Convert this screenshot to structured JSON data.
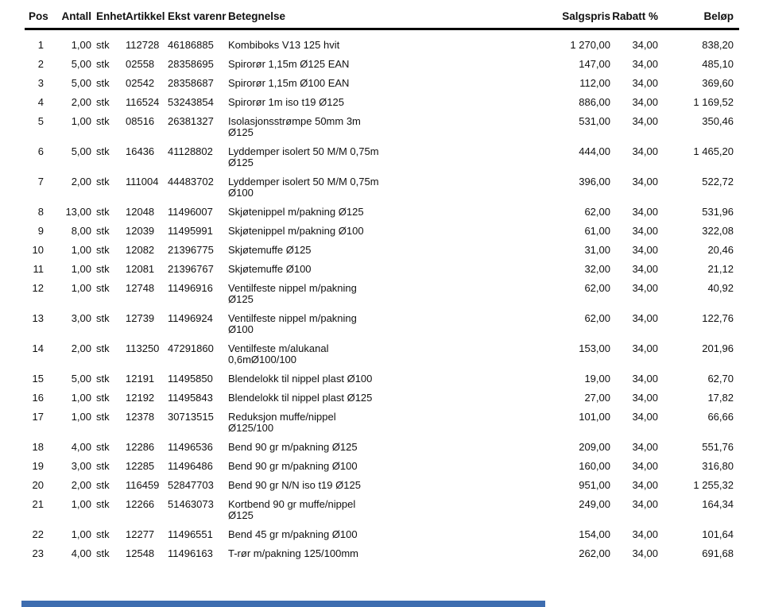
{
  "page": {
    "background": "#ffffff",
    "text_color": "#111111"
  },
  "table": {
    "headers": {
      "pos": "Pos",
      "antall": "Antall",
      "enhet": "Enhet",
      "artikkel": "Artikkel",
      "ekst_varenr": "Ekst varenr",
      "betegnelse": "Betegnelse",
      "salgspris": "Salgspris",
      "rabatt": "Rabatt %",
      "belop": "Beløp"
    },
    "rows": [
      {
        "pos": "1",
        "antall": "1,00",
        "enhet": "stk",
        "artikkel": "112728",
        "ekst_varenr": "46186885",
        "betegnelse": "Kombiboks V13 125 hvit",
        "salgspris": "1 270,00",
        "rabatt": "34,00",
        "belop": "838,20"
      },
      {
        "pos": "2",
        "antall": "5,00",
        "enhet": "stk",
        "artikkel": "02558",
        "ekst_varenr": "28358695",
        "betegnelse": "Spirorør 1,15m Ø125 EAN",
        "salgspris": "147,00",
        "rabatt": "34,00",
        "belop": "485,10"
      },
      {
        "pos": "3",
        "antall": "5,00",
        "enhet": "stk",
        "artikkel": "02542",
        "ekst_varenr": "28358687",
        "betegnelse": "Spirorør 1,15m Ø100 EAN",
        "salgspris": "112,00",
        "rabatt": "34,00",
        "belop": "369,60"
      },
      {
        "pos": "4",
        "antall": "2,00",
        "enhet": "stk",
        "artikkel": "116524",
        "ekst_varenr": "53243854",
        "betegnelse": "Spirorør 1m iso t19 Ø125",
        "salgspris": "886,00",
        "rabatt": "34,00",
        "belop": "1 169,52"
      },
      {
        "pos": "5",
        "antall": "1,00",
        "enhet": "stk",
        "artikkel": "08516",
        "ekst_varenr": "26381327",
        "betegnelse": "Isolasjonsstrømpe 50mm 3m\nØ125",
        "salgspris": "531,00",
        "rabatt": "34,00",
        "belop": "350,46"
      },
      {
        "pos": "6",
        "antall": "5,00",
        "enhet": "stk",
        "artikkel": "16436",
        "ekst_varenr": "41128802",
        "betegnelse": "Lyddemper isolert 50 M/M 0,75m\nØ125",
        "salgspris": "444,00",
        "rabatt": "34,00",
        "belop": "1 465,20"
      },
      {
        "pos": "7",
        "antall": "2,00",
        "enhet": "stk",
        "artikkel": "111004",
        "ekst_varenr": "44483702",
        "betegnelse": "Lyddemper isolert 50 M/M 0,75m\nØ100",
        "salgspris": "396,00",
        "rabatt": "34,00",
        "belop": "522,72"
      },
      {
        "pos": "8",
        "antall": "13,00",
        "enhet": "stk",
        "artikkel": "12048",
        "ekst_varenr": "11496007",
        "betegnelse": "Skjøtenippel m/pakning Ø125",
        "salgspris": "62,00",
        "rabatt": "34,00",
        "belop": "531,96"
      },
      {
        "pos": "9",
        "antall": "8,00",
        "enhet": "stk",
        "artikkel": "12039",
        "ekst_varenr": "11495991",
        "betegnelse": "Skjøtenippel m/pakning Ø100",
        "salgspris": "61,00",
        "rabatt": "34,00",
        "belop": "322,08"
      },
      {
        "pos": "10",
        "antall": "1,00",
        "enhet": "stk",
        "artikkel": "12082",
        "ekst_varenr": "21396775",
        "betegnelse": "Skjøtemuffe Ø125",
        "salgspris": "31,00",
        "rabatt": "34,00",
        "belop": "20,46"
      },
      {
        "pos": "11",
        "antall": "1,00",
        "enhet": "stk",
        "artikkel": "12081",
        "ekst_varenr": "21396767",
        "betegnelse": "Skjøtemuffe Ø100",
        "salgspris": "32,00",
        "rabatt": "34,00",
        "belop": "21,12"
      },
      {
        "pos": "12",
        "antall": "1,00",
        "enhet": "stk",
        "artikkel": "12748",
        "ekst_varenr": "11496916",
        "betegnelse": "Ventilfeste nippel m/pakning\nØ125",
        "salgspris": "62,00",
        "rabatt": "34,00",
        "belop": "40,92"
      },
      {
        "pos": "13",
        "antall": "3,00",
        "enhet": "stk",
        "artikkel": "12739",
        "ekst_varenr": "11496924",
        "betegnelse": "Ventilfeste nippel m/pakning\nØ100",
        "salgspris": "62,00",
        "rabatt": "34,00",
        "belop": "122,76"
      },
      {
        "pos": "14",
        "antall": "2,00",
        "enhet": "stk",
        "artikkel": "113250",
        "ekst_varenr": "47291860",
        "betegnelse": "Ventilfeste m/alukanal\n0,6mØ100/100",
        "salgspris": "153,00",
        "rabatt": "34,00",
        "belop": "201,96"
      },
      {
        "pos": "15",
        "antall": "5,00",
        "enhet": "stk",
        "artikkel": "12191",
        "ekst_varenr": "11495850",
        "betegnelse": "Blendelokk til nippel plast Ø100",
        "salgspris": "19,00",
        "rabatt": "34,00",
        "belop": "62,70"
      },
      {
        "pos": "16",
        "antall": "1,00",
        "enhet": "stk",
        "artikkel": "12192",
        "ekst_varenr": "11495843",
        "betegnelse": "Blendelokk til nippel plast Ø125",
        "salgspris": "27,00",
        "rabatt": "34,00",
        "belop": "17,82"
      },
      {
        "pos": "17",
        "antall": "1,00",
        "enhet": "stk",
        "artikkel": "12378",
        "ekst_varenr": "30713515",
        "betegnelse": "Reduksjon muffe/nippel\nØ125/100",
        "salgspris": "101,00",
        "rabatt": "34,00",
        "belop": "66,66"
      },
      {
        "pos": "18",
        "antall": "4,00",
        "enhet": "stk",
        "artikkel": "12286",
        "ekst_varenr": "11496536",
        "betegnelse": "Bend 90 gr m/pakning Ø125",
        "salgspris": "209,00",
        "rabatt": "34,00",
        "belop": "551,76"
      },
      {
        "pos": "19",
        "antall": "3,00",
        "enhet": "stk",
        "artikkel": "12285",
        "ekst_varenr": "11496486",
        "betegnelse": "Bend 90 gr m/pakning Ø100",
        "salgspris": "160,00",
        "rabatt": "34,00",
        "belop": "316,80"
      },
      {
        "pos": "20",
        "antall": "2,00",
        "enhet": "stk",
        "artikkel": "116459",
        "ekst_varenr": "52847703",
        "betegnelse": "Bend 90 gr N/N iso t19 Ø125",
        "salgspris": "951,00",
        "rabatt": "34,00",
        "belop": "1 255,32"
      },
      {
        "pos": "21",
        "antall": "1,00",
        "enhet": "stk",
        "artikkel": "12266",
        "ekst_varenr": "51463073",
        "betegnelse": "Kortbend 90 gr muffe/nippel\nØ125",
        "salgspris": "249,00",
        "rabatt": "34,00",
        "belop": "164,34"
      },
      {
        "pos": "22",
        "antall": "1,00",
        "enhet": "stk",
        "artikkel": "12277",
        "ekst_varenr": "11496551",
        "betegnelse": "Bend 45 gr m/pakning Ø100",
        "salgspris": "154,00",
        "rabatt": "34,00",
        "belop": "101,64"
      },
      {
        "pos": "23",
        "antall": "4,00",
        "enhet": "stk",
        "artikkel": "12548",
        "ekst_varenr": "11496163",
        "betegnelse": "T-rør m/pakning 125/100mm",
        "salgspris": "262,00",
        "rabatt": "34,00",
        "belop": "691,68"
      }
    ]
  },
  "footer": {
    "selection_bar_color": "#3e6db0"
  }
}
